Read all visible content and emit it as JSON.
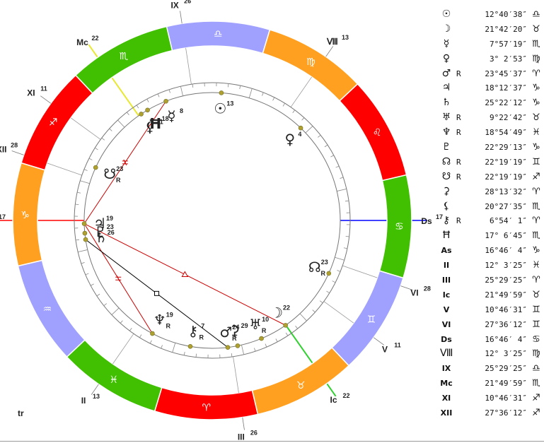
{
  "wheel": {
    "signs": [
      {
        "name": "aries",
        "glyph": "♈",
        "color": "#ff0000"
      },
      {
        "name": "taurus",
        "glyph": "♉",
        "color": "#ffa020"
      },
      {
        "name": "gemini",
        "glyph": "♊",
        "color": "#a0a0ff"
      },
      {
        "name": "cancer",
        "glyph": "♋",
        "color": "#40c000"
      },
      {
        "name": "leo",
        "glyph": "♌",
        "color": "#ff0000"
      },
      {
        "name": "virgo",
        "glyph": "♍",
        "color": "#ffa020"
      },
      {
        "name": "libra",
        "glyph": "♎",
        "color": "#a0a0ff"
      },
      {
        "name": "scorpio",
        "glyph": "♏",
        "color": "#40c000"
      },
      {
        "name": "sagittarius",
        "glyph": "♐",
        "color": "#ff0000"
      },
      {
        "name": "capricorn",
        "glyph": "♑",
        "color": "#ffa020"
      },
      {
        "name": "aquarius",
        "glyph": "♒",
        "color": "#a0a0ff"
      },
      {
        "name": "pisces",
        "glyph": "♓",
        "color": "#40c000"
      }
    ],
    "ascendant_longitude": 286.77,
    "houses": [
      {
        "id": "As",
        "label": "As",
        "degree": "17",
        "longitude": 286.77
      },
      {
        "id": "II",
        "label": "II",
        "degree": "13",
        "longitude": 342.06
      },
      {
        "id": "III",
        "label": "III",
        "degree": "26",
        "longitude": 25.49
      },
      {
        "id": "Ic",
        "label": "Ic",
        "degree": "22",
        "longitude": 51.83
      },
      {
        "id": "V",
        "label": "V",
        "degree": "11",
        "longitude": 70.78
      },
      {
        "id": "VI",
        "label": "VI",
        "degree": "28",
        "longitude": 87.6
      },
      {
        "id": "Ds",
        "label": "Ds",
        "degree": "17",
        "longitude": 106.77
      },
      {
        "id": "VIII",
        "label": "Ⅷ",
        "degree": "13",
        "longitude": 162.06
      },
      {
        "id": "IX",
        "label": "IX",
        "degree": "26",
        "longitude": 205.49
      },
      {
        "id": "Mc",
        "label": "Mc",
        "degree": "22",
        "longitude": 231.83
      },
      {
        "id": "XI",
        "label": "XI",
        "degree": "11",
        "longitude": 250.78
      },
      {
        "id": "XII",
        "label": "XII",
        "degree": "28",
        "longitude": 267.6
      }
    ],
    "bodies": [
      {
        "id": "sun",
        "glyph": "☉",
        "degree": "13",
        "longitude": 192.68,
        "retro": ""
      },
      {
        "id": "moon",
        "glyph": "☽",
        "degree": "22",
        "longitude": 51.71,
        "retro": ""
      },
      {
        "id": "mercury",
        "glyph": "☿",
        "degree": "8",
        "longitude": 217.96,
        "retro": ""
      },
      {
        "id": "venus",
        "glyph": "♀",
        "degree": "4",
        "longitude": 153.05,
        "retro": ""
      },
      {
        "id": "mars",
        "glyph": "♂",
        "degree": "24",
        "longitude": 23.76,
        "retro": "R"
      },
      {
        "id": "jupiter",
        "glyph": "♃",
        "degree": "19",
        "longitude": 288.21,
        "retro": ""
      },
      {
        "id": "saturn",
        "glyph": "♄",
        "degree": "26",
        "longitude": 295.37,
        "retro": ""
      },
      {
        "id": "uranus",
        "glyph": "♅",
        "degree": "10",
        "longitude": 39.37,
        "retro": "R"
      },
      {
        "id": "neptune",
        "glyph": "♆",
        "degree": "19",
        "longitude": 348.91,
        "retro": "R"
      },
      {
        "id": "pluto",
        "glyph": "♇",
        "degree": "23",
        "longitude": 292.49,
        "retro": ""
      },
      {
        "id": "north-node",
        "glyph": "☊",
        "degree": "23",
        "longitude": 82.32,
        "retro": "R"
      },
      {
        "id": "south-node",
        "glyph": "☋",
        "degree": "23",
        "longitude": 262.32,
        "retro": "R"
      },
      {
        "id": "ceres",
        "glyph": "⚳",
        "degree": "29",
        "longitude": 28.23,
        "retro": ""
      },
      {
        "id": "lilith",
        "glyph": "⚸",
        "degree": "21",
        "longitude": 230.46,
        "retro": ""
      },
      {
        "id": "chiron",
        "glyph": "⚷",
        "degree": "7",
        "longitude": 6.91,
        "retro": "R"
      },
      {
        "id": "uranian-h",
        "glyph": "Ħ",
        "degree": "18",
        "longitude": 227.11,
        "retro": ""
      }
    ],
    "aspects": [
      {
        "from": "jupiter",
        "to": "moon",
        "color": "#cc0000",
        "marker": "triangle"
      },
      {
        "from": "jupiter",
        "to": "mercury",
        "color": "#cc0000",
        "marker": "cross"
      },
      {
        "from": "jupiter",
        "to": "neptune",
        "color": "#cc0000",
        "marker": "cross"
      },
      {
        "from": "saturn",
        "to": "mars",
        "color": "#000000",
        "marker": "square"
      }
    ],
    "axes": [
      {
        "from": "As",
        "color": "#ff4040"
      },
      {
        "from": "Ds",
        "color": "#4040ff"
      },
      {
        "from": "Mc",
        "color": "#e8e830"
      },
      {
        "from": "Ic",
        "color": "#30d030"
      }
    ]
  },
  "footer_label": "tr",
  "positions": [
    {
      "id": "sun",
      "glyph": "☉",
      "retro": "",
      "degree": "12°40′38″",
      "sign": "♎"
    },
    {
      "id": "moon",
      "glyph": "☽",
      "retro": "",
      "degree": "21°42′20″",
      "sign": "♉"
    },
    {
      "id": "mercury",
      "glyph": "☿",
      "retro": "",
      "degree": "7°57′19″",
      "sign": "♏"
    },
    {
      "id": "venus",
      "glyph": "♀",
      "retro": "",
      "degree": "3° 2′53″",
      "sign": "♍"
    },
    {
      "id": "mars",
      "glyph": "♂",
      "retro": "R",
      "degree": "23°45′37″",
      "sign": "♈"
    },
    {
      "id": "jupiter",
      "glyph": "♃",
      "retro": "",
      "degree": "18°12′37″",
      "sign": "♑"
    },
    {
      "id": "saturn",
      "glyph": "♄",
      "retro": "",
      "degree": "25°22′12″",
      "sign": "♑"
    },
    {
      "id": "uranus",
      "glyph": "♅",
      "retro": "R",
      "degree": "9°22′42″",
      "sign": "♉"
    },
    {
      "id": "neptune",
      "glyph": "♆",
      "retro": "R",
      "degree": "18°54′49″",
      "sign": "♓"
    },
    {
      "id": "pluto",
      "glyph": "♇",
      "retro": "",
      "degree": "22°29′13″",
      "sign": "♑"
    },
    {
      "id": "north-node",
      "glyph": "☊",
      "retro": "R",
      "degree": "22°19′19″",
      "sign": "♊"
    },
    {
      "id": "south-node",
      "glyph": "☋",
      "retro": "R",
      "degree": "22°19′19″",
      "sign": "♐"
    },
    {
      "id": "ceres",
      "glyph": "⚳",
      "retro": "",
      "degree": "28°13′32″",
      "sign": "♈"
    },
    {
      "id": "lilith",
      "glyph": "⚸",
      "retro": "",
      "degree": "20°27′35″",
      "sign": "♏"
    },
    {
      "id": "chiron",
      "glyph": "⚷",
      "retro": "R",
      "degree": "6°54′ 1″",
      "sign": "♈"
    },
    {
      "id": "uranian-h",
      "glyph": "Ħ",
      "retro": "",
      "degree": "17° 6′45″",
      "sign": "♏"
    },
    {
      "id": "As",
      "glyph": "As",
      "retro": "",
      "degree": "16°46′ 4″",
      "sign": "♑"
    },
    {
      "id": "II",
      "glyph": "II",
      "retro": "",
      "degree": "12° 3′25″",
      "sign": "♓"
    },
    {
      "id": "III",
      "glyph": "III",
      "retro": "",
      "degree": "25°29′25″",
      "sign": "♈"
    },
    {
      "id": "Ic",
      "glyph": "Ic",
      "retro": "",
      "degree": "21°49′59″",
      "sign": "♉"
    },
    {
      "id": "V",
      "glyph": "V",
      "retro": "",
      "degree": "10°46′31″",
      "sign": "♊"
    },
    {
      "id": "VI",
      "glyph": "VI",
      "retro": "",
      "degree": "27°36′12″",
      "sign": "♊"
    },
    {
      "id": "Ds",
      "glyph": "Ds",
      "retro": "",
      "degree": "16°46′ 4″",
      "sign": "♋"
    },
    {
      "id": "VIII",
      "glyph": "Ⅷ",
      "retro": "",
      "degree": "12° 3′25″",
      "sign": "♍"
    },
    {
      "id": "IX",
      "glyph": "IX",
      "retro": "",
      "degree": "25°29′25″",
      "sign": "♎"
    },
    {
      "id": "Mc",
      "glyph": "Mc",
      "retro": "",
      "degree": "21°49′59″",
      "sign": "♏"
    },
    {
      "id": "XI",
      "glyph": "XI",
      "retro": "",
      "degree": "10°46′31″",
      "sign": "♐"
    },
    {
      "id": "XII",
      "glyph": "XII",
      "retro": "",
      "degree": "27°36′12″",
      "sign": "♐"
    }
  ]
}
